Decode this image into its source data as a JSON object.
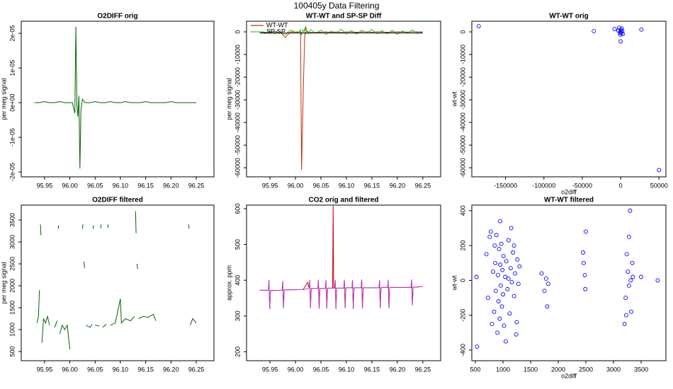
{
  "title": "100405y   Data Filtering",
  "chart_data": [
    {
      "type": "line",
      "title": "O2DIFF orig",
      "ylabel": "per meg signal",
      "x": [
        95.93,
        95.94,
        95.95,
        95.96,
        95.965,
        95.97,
        95.98,
        95.99,
        96.0,
        96.005,
        96.01,
        96.012,
        96.014,
        96.016,
        96.018,
        96.02,
        96.022,
        96.025,
        96.03,
        96.04,
        96.05,
        96.06,
        96.07,
        96.08,
        96.09,
        96.1,
        96.11,
        96.12,
        96.13,
        96.14,
        96.15,
        96.16,
        96.17,
        96.18,
        96.19,
        96.2,
        96.21,
        96.22,
        96.23,
        96.24,
        96.25
      ],
      "series": [
        {
          "color": "#006400",
          "values": [
            0,
            0,
            3e-07,
            0,
            0,
            0,
            3e-07,
            0,
            0,
            0,
            -3e-06,
            2.2e-05,
            -1e-06,
            -4e-06,
            2e-06,
            -1.9e-05,
            -2e-06,
            1e-06,
            0,
            0,
            3e-07,
            0,
            0,
            3e-07,
            0,
            0,
            3e-07,
            0,
            0,
            0,
            3e-07,
            0,
            0,
            0,
            0,
            3e-07,
            0,
            0,
            0,
            0,
            0
          ]
        }
      ],
      "xlim": [
        95.904,
        96.285
      ],
      "ylim": [
        -2.14e-05,
        2.35e-05
      ],
      "xticks": [
        95.95,
        {
          "value": 96,
          "label": "96.00"
        },
        96.05,
        {
          "value": 96.1,
          "label": "96.10"
        },
        96.15,
        {
          "value": 96.2,
          "label": "96.20"
        },
        96.25
      ],
      "yticks": [
        {
          "value": 2e-05,
          "label": "2e-05"
        },
        {
          "value": 1e-05,
          "label": "1e-05"
        },
        {
          "value": 0,
          "label": "0e+00"
        },
        {
          "value": -1e-05,
          "label": "-1e-05"
        },
        {
          "value": -2e-05,
          "label": "-2e-05"
        }
      ]
    },
    {
      "type": "line",
      "title": "WT-WT and SP-SP Diff",
      "ylabel": "per meg signal",
      "legend": "top-left",
      "x": [
        95.93,
        95.94,
        95.95,
        95.96,
        95.965,
        95.97,
        95.98,
        95.99,
        96.0,
        96.005,
        96.01,
        96.012,
        96.014,
        96.016,
        96.018,
        96.02,
        96.022,
        96.025,
        96.03,
        96.04,
        96.05,
        96.06,
        96.07,
        96.08,
        96.09,
        96.1,
        96.11,
        96.12,
        96.13,
        96.14,
        96.15,
        96.16,
        96.17,
        96.18,
        96.19,
        96.2,
        96.21,
        96.22,
        96.23,
        96.24,
        96.25
      ],
      "series": [
        {
          "name": "WT-WT",
          "color": "#c0300c",
          "values": [
            0,
            -200,
            -100,
            0,
            -300,
            0,
            -2500,
            0,
            0,
            0,
            0,
            -61000,
            -40000,
            -20000,
            -3000,
            2500,
            500,
            0,
            -300,
            -200,
            -100,
            0,
            -200,
            0,
            -300,
            0,
            0,
            -200,
            0,
            0,
            -100,
            0,
            0,
            -200,
            0,
            0,
            0,
            -100,
            0,
            0,
            0
          ]
        },
        {
          "name": "SP-SP",
          "color": "#33cc33",
          "values": [
            0,
            -800,
            500,
            -1000,
            600,
            0,
            -1200,
            800,
            0,
            -500,
            1000,
            -1500,
            800,
            0,
            1500,
            -1000,
            500,
            -800,
            1000,
            -600,
            800,
            -1200,
            500,
            -700,
            1200,
            -900,
            600,
            -1000,
            800,
            -500,
            1100,
            -800,
            600,
            -900,
            700,
            -1200,
            500,
            -600,
            900,
            -700,
            0
          ]
        },
        {
          "color": "#000000",
          "values": [
            -500,
            -450,
            -500,
            -550,
            -500,
            -480,
            -520,
            -500,
            -470,
            -500,
            -530,
            -500,
            -490,
            -510,
            -500,
            -480,
            -500,
            -520,
            -500,
            -490,
            -510,
            -500,
            -480,
            -500,
            -520,
            -500,
            -490,
            -510,
            -500,
            -480,
            -500,
            -520,
            -500,
            -490,
            -510,
            -500,
            -480,
            -500,
            -520,
            -500,
            -500
          ]
        }
      ],
      "xlim": [
        95.904,
        96.285
      ],
      "ylim": [
        -64000,
        4700
      ],
      "xticks": [
        95.95,
        {
          "value": 96,
          "label": "96.00"
        },
        96.05,
        {
          "value": 96.1,
          "label": "96.10"
        },
        96.15,
        {
          "value": 96.2,
          "label": "96.20"
        },
        96.25
      ],
      "yticks": [
        0,
        -10000,
        -20000,
        -30000,
        -40000,
        -50000,
        -60000
      ]
    },
    {
      "type": "scatter",
      "title": "WT-WT orig",
      "xlabel": "o2diff",
      "ylabel": "wt-wt",
      "color": "#0000ff",
      "x": [
        -185000,
        -35000,
        -8000,
        -3000,
        -1000,
        0,
        1000,
        2000,
        500,
        -500,
        1500,
        0,
        27000,
        50000,
        -2000,
        3000
      ],
      "values": [
        2500,
        300,
        1200,
        600,
        -300,
        200,
        -600,
        300,
        900,
        -1200,
        1400,
        -4200,
        1000,
        -61000,
        1800,
        -900
      ],
      "xlim": [
        -194000,
        59000
      ],
      "ylim": [
        -64000,
        4700
      ],
      "xticks": [
        -150000,
        -100000,
        -50000,
        0,
        50000
      ],
      "yticks": [
        0,
        -10000,
        -20000,
        -30000,
        -40000,
        -50000,
        -60000
      ]
    },
    {
      "type": "line",
      "title": "O2DIFF filtered",
      "ylabel": "per meg signal",
      "x": [
        95.935,
        95.938,
        95.94,
        95.941,
        95.942,
        95.943,
        95.944,
        95.945,
        95.948,
        95.952,
        95.956,
        95.96,
        95.965,
        95.97,
        95.975,
        95.976,
        95.977,
        95.978,
        95.979,
        95.98,
        95.985,
        95.99,
        95.995,
        96.0,
        96.005,
        96.025,
        96.026,
        96.027,
        96.028,
        96.029,
        96.03,
        96.032,
        96.04,
        96.044,
        96.045,
        96.046,
        96.047,
        96.048,
        96.05,
        96.058,
        96.059,
        96.061,
        96.062,
        96.063,
        96.065,
        96.072,
        96.073,
        96.075,
        96.076,
        96.077,
        96.08,
        96.09,
        96.1,
        96.102,
        96.11,
        96.12,
        96.128,
        96.129,
        96.13,
        96.131,
        96.132,
        96.133,
        96.134,
        96.135,
        96.136,
        96.145,
        96.155,
        96.165,
        96.17,
        96.175,
        96.235,
        96.236,
        96.237,
        96.238,
        96.243,
        96.25
      ],
      "series": [
        {
          "color": "#006400",
          "values": [
            1150,
            1300,
            1900,
            null,
            3400,
            3150,
            null,
            700,
            1250,
            1150,
            1300,
            1100,
            null,
            1050,
            1200,
            null,
            3300,
            3380,
            null,
            900,
            1100,
            1000,
            1100,
            550,
            null,
            3300,
            3400,
            null,
            2550,
            2400,
            null,
            1100,
            1050,
            1120,
            null,
            3300,
            3380,
            null,
            1100,
            1080,
            null,
            3310,
            3400,
            null,
            1050,
            1120,
            null,
            3320,
            3400,
            null,
            1100,
            1150,
            1700,
            1150,
            1250,
            1200,
            1300,
            null,
            3700,
            3200,
            null,
            2500,
            2380,
            null,
            1250,
            1300,
            1280,
            1350,
            1200,
            null,
            3400,
            3300,
            null,
            1100,
            1250,
            1150
          ]
        }
      ],
      "xlim": [
        95.904,
        96.285
      ],
      "ylim": [
        290,
        3840
      ],
      "xticks": [
        95.95,
        {
          "value": 96,
          "label": "96.00"
        },
        96.05,
        {
          "value": 96.1,
          "label": "96.10"
        },
        96.15,
        {
          "value": 96.2,
          "label": "96.20"
        },
        96.25
      ],
      "yticks": [
        500,
        1000,
        1500,
        2000,
        2500,
        3000,
        3500
      ]
    },
    {
      "type": "line",
      "title": "CO2 orig and filtered",
      "ylabel": "approx. ppm",
      "x": [
        95.93,
        95.947,
        95.948,
        95.9495,
        95.951,
        95.974,
        95.975,
        95.9765,
        95.978,
        96.015,
        96.024,
        96.027,
        96.028,
        96.0295,
        96.031,
        96.044,
        96.045,
        96.0465,
        96.048,
        96.059,
        96.06,
        96.0615,
        96.063,
        96.073,
        96.074,
        96.075,
        96.077,
        96.078,
        96.0795,
        96.081,
        96.095,
        96.096,
        96.0975,
        96.099,
        96.111,
        96.112,
        96.1135,
        96.115,
        96.129,
        96.13,
        96.1315,
        96.133,
        96.164,
        96.165,
        96.1665,
        96.168,
        96.181,
        96.182,
        96.1835,
        96.185,
        96.227,
        96.228,
        96.2295,
        96.231,
        96.24,
        96.25
      ],
      "series": [
        {
          "color": "#cc0000",
          "values": [
            372,
            372,
            400,
            320,
            371,
            372,
            398,
            322,
            373,
            374,
            394,
            378,
            400,
            322,
            377,
            377,
            401,
            320,
            377,
            377,
            400,
            321,
            378,
            378,
            608,
            378,
            378,
            400,
            320,
            378,
            378,
            401,
            322,
            379,
            379,
            400,
            320,
            379,
            379,
            402,
            321,
            379,
            379,
            400,
            322,
            380,
            380,
            401,
            321,
            380,
            380,
            402,
            330,
            381,
            381,
            383
          ]
        },
        {
          "color": "#b040c8",
          "values": [
            372,
            372,
            400,
            320,
            371,
            372,
            398,
            322,
            373,
            374,
            376,
            378,
            400,
            322,
            377,
            377,
            401,
            320,
            377,
            377,
            400,
            321,
            378,
            378,
            378,
            378,
            378,
            400,
            320,
            378,
            378,
            401,
            322,
            379,
            379,
            400,
            320,
            379,
            379,
            402,
            321,
            379,
            379,
            400,
            322,
            380,
            380,
            401,
            321,
            380,
            380,
            402,
            330,
            381,
            381,
            383
          ]
        }
      ],
      "xlim": [
        95.904,
        96.285
      ],
      "ylim": [
        175,
        610
      ],
      "xticks": [
        95.95,
        {
          "value": 96,
          "label": "96.00"
        },
        96.05,
        {
          "value": 96.1,
          "label": "96.10"
        },
        96.15,
        {
          "value": 96.2,
          "label": "96.20"
        },
        96.25
      ],
      "yticks": [
        200,
        300,
        400,
        500,
        600
      ]
    },
    {
      "type": "scatter",
      "title": "WT-WT filtered",
      "xlabel": "o2diff",
      "ylabel": "wt-wt",
      "color": "#0000ff",
      "x": [
        520,
        530,
        700,
        730,
        760,
        780,
        800,
        820,
        840,
        850,
        860,
        870,
        880,
        900,
        910,
        920,
        930,
        940,
        950,
        960,
        970,
        980,
        990,
        1000,
        1010,
        1020,
        1040,
        1060,
        1080,
        1100,
        1120,
        1140,
        1160,
        1180,
        1200,
        1220,
        1240,
        1260,
        1280,
        1300,
        1050,
        1150,
        1250,
        950,
        1100,
        1200,
        1700,
        1750,
        1780,
        1800,
        1820,
        2450,
        2460,
        2480,
        2490,
        2500,
        3200,
        3220,
        3240,
        3260,
        3280,
        3300,
        3320,
        3340,
        3350,
        3230,
        3280,
        3310,
        3500,
        3800
      ],
      "values": [
        20,
        -380,
        150,
        -100,
        250,
        280,
        -250,
        50,
        -180,
        200,
        100,
        -60,
        260,
        -300,
        30,
        -120,
        180,
        -220,
        90,
        -30,
        210,
        -150,
        60,
        -80,
        140,
        -260,
        20,
        110,
        -50,
        230,
        -190,
        70,
        -10,
        160,
        -90,
        40,
        -310,
        120,
        -20,
        80,
        -350,
        300,
        -240,
        340,
        10,
        200,
        40,
        -60,
        10,
        -150,
        -20,
        160,
        100,
        30,
        -50,
        280,
        -250,
        -100,
        150,
        50,
        -30,
        400,
        -180,
        100,
        20,
        -200,
        250,
        0,
        20,
        0
      ],
      "xlim": [
        436,
        3949
      ],
      "ylim": [
        -461,
        432
      ],
      "xticks": [
        500,
        1000,
        1500,
        2000,
        2500,
        3000,
        3500
      ],
      "yticks": [
        -400,
        -200,
        0,
        200,
        400
      ]
    }
  ]
}
